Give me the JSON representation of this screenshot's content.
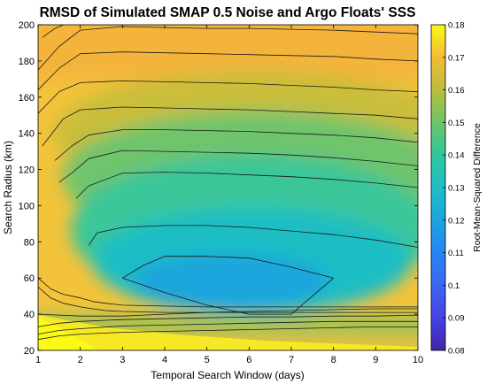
{
  "chart_data": {
    "type": "contour",
    "title": "RMSD of Simulated SMAP 0.5 Noise and Argo Floats' SSS",
    "xlabel": "Temporal Search Window (days)",
    "ylabel": "Search Radius (km)",
    "colorbar_label": "Root-Mean-Squared Difference",
    "xlim": [
      1,
      10
    ],
    "ylim": [
      20,
      200
    ],
    "x_ticks": [
      1,
      2,
      3,
      4,
      5,
      6,
      7,
      8,
      9,
      10
    ],
    "y_ticks": [
      20,
      40,
      60,
      80,
      100,
      120,
      140,
      160,
      180,
      200
    ],
    "colorbar_range": [
      0.08,
      0.18
    ],
    "colorbar_ticks": [
      "0.08",
      "0.09",
      "0.1",
      "0.11",
      "0.12",
      "0.13",
      "0.14",
      "0.15",
      "0.16",
      "0.17",
      "0.18"
    ],
    "colormap": [
      "#3e26a8",
      "#4743e4",
      "#3a66f3",
      "#2686f2",
      "#1ba5dd",
      "#1ebec4",
      "#33c69c",
      "#6ec46c",
      "#b9bd3b",
      "#f3bc35",
      "#f9fb15"
    ],
    "contour_lines": [
      {
        "x": [
          1,
          1.5,
          2,
          3,
          4,
          5,
          6,
          7,
          8,
          9,
          10
        ],
        "y": [
          26,
          28,
          29,
          30,
          30.5,
          31,
          31.5,
          32,
          32.5,
          33,
          33
        ]
      },
      {
        "x": [
          1,
          1.5,
          2,
          3,
          4,
          5,
          6,
          7,
          8,
          9,
          10
        ],
        "y": [
          29,
          31,
          32,
          33.5,
          34,
          34.5,
          35,
          35.5,
          36,
          36,
          36
        ]
      },
      {
        "x": [
          1,
          1.5,
          2,
          3,
          4,
          5,
          6,
          7,
          8,
          9,
          10
        ],
        "y": [
          33,
          35,
          36,
          37,
          37.5,
          38,
          38.5,
          38.5,
          39,
          39,
          39.5
        ]
      },
      {
        "x": [
          1,
          2,
          3,
          4,
          5,
          6,
          7,
          8,
          9,
          10
        ],
        "y": [
          40,
          39,
          39,
          40,
          41,
          41.5,
          42,
          42.5,
          43,
          43
        ]
      },
      {
        "x": [
          3,
          3.5,
          4,
          5,
          6,
          7,
          8,
          7,
          6,
          5,
          4,
          3
        ],
        "y": [
          60,
          67,
          72,
          72,
          71,
          66,
          60,
          40,
          40,
          45,
          52,
          60
        ]
      },
      {
        "x": [
          1,
          1.3,
          1.6,
          2,
          2.3,
          2.6,
          3,
          4,
          5,
          6,
          7,
          8,
          9,
          10
        ],
        "y": [
          60,
          54,
          51,
          49,
          47,
          46,
          45,
          44.5,
          44,
          44,
          44,
          44,
          44,
          44
        ]
      },
      {
        "x": [
          1,
          1.3,
          1.6,
          2,
          2.3,
          2.6,
          3,
          4,
          5,
          6,
          7,
          8,
          9,
          10
        ],
        "y": [
          55,
          49,
          46,
          44,
          43,
          42,
          41.5,
          41,
          41,
          41,
          41,
          41,
          41,
          41
        ]
      },
      {
        "x": [
          2.2,
          2.4,
          3,
          4,
          5,
          6,
          7,
          8,
          9,
          10
        ],
        "y": [
          78,
          85,
          88,
          89,
          89,
          88,
          86,
          84,
          81,
          77
        ]
      },
      {
        "x": [
          1.9,
          2.2,
          3,
          4,
          5,
          6,
          7,
          8,
          9,
          10
        ],
        "y": [
          104,
          111,
          118,
          118.5,
          118,
          117,
          116,
          114.5,
          112.5,
          110
        ]
      },
      {
        "x": [
          1.5,
          1.8,
          2.2,
          3,
          4,
          5,
          6,
          7,
          8,
          9,
          10
        ],
        "y": [
          113,
          118,
          126,
          130.5,
          130,
          129.5,
          129,
          128,
          126.5,
          124.5,
          122
        ]
      },
      {
        "x": [
          1.4,
          1.8,
          2.2,
          3,
          4,
          5,
          6,
          7,
          8,
          9,
          10
        ],
        "y": [
          125,
          133,
          139,
          142,
          142,
          141.5,
          141,
          140,
          139,
          137.5,
          135
        ]
      },
      {
        "x": [
          1.1,
          1.6,
          2,
          3,
          4,
          5,
          6,
          7,
          8,
          9,
          10
        ],
        "y": [
          133,
          148,
          153,
          154.5,
          154,
          153.5,
          153,
          152,
          151,
          150,
          148
        ]
      },
      {
        "x": [
          1,
          1.5,
          2,
          3,
          4,
          5,
          6,
          7,
          8,
          9,
          10
        ],
        "y": [
          151,
          163,
          168,
          169,
          168.5,
          168,
          167.5,
          166.5,
          165.5,
          164,
          163
        ]
      },
      {
        "x": [
          1,
          1.5,
          2,
          3,
          4,
          5,
          6,
          7,
          8,
          9,
          10
        ],
        "y": [
          164,
          176,
          184,
          185,
          184.5,
          184,
          183.5,
          183,
          182.5,
          181,
          180
        ]
      },
      {
        "x": [
          1,
          1.5,
          2,
          3,
          4,
          5,
          6,
          7,
          8,
          9,
          10
        ],
        "y": [
          175,
          188,
          197,
          199,
          198.5,
          198,
          198,
          197.5,
          197,
          196,
          195
        ]
      },
      {
        "x": [
          1.1,
          1.4,
          1.6
        ],
        "y": [
          193,
          198,
          200
        ]
      }
    ]
  }
}
